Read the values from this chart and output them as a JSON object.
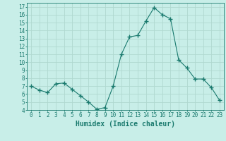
{
  "x": [
    0,
    1,
    2,
    3,
    4,
    5,
    6,
    7,
    8,
    9,
    10,
    11,
    12,
    13,
    14,
    15,
    16,
    17,
    18,
    19,
    20,
    21,
    22,
    23
  ],
  "y": [
    7.0,
    6.5,
    6.2,
    7.3,
    7.4,
    6.6,
    5.8,
    5.0,
    4.1,
    4.3,
    7.0,
    11.0,
    13.2,
    13.4,
    15.2,
    16.9,
    16.0,
    15.5,
    10.3,
    9.3,
    7.9,
    7.9,
    6.8,
    5.2
  ],
  "line_color": "#1a7a6e",
  "marker": "+",
  "marker_size": 4,
  "bg_color": "#c8eee8",
  "grid_color": "#b0d8d0",
  "xlabel": "Humidex (Indice chaleur)",
  "xlim": [
    -0.5,
    23.5
  ],
  "ylim": [
    4,
    17.5
  ],
  "yticks": [
    4,
    5,
    6,
    7,
    8,
    9,
    10,
    11,
    12,
    13,
    14,
    15,
    16,
    17
  ],
  "xticks": [
    0,
    1,
    2,
    3,
    4,
    5,
    6,
    7,
    8,
    9,
    10,
    11,
    12,
    13,
    14,
    15,
    16,
    17,
    18,
    19,
    20,
    21,
    22,
    23
  ],
  "tick_label_fontsize": 5.5,
  "xlabel_fontsize": 7,
  "tick_color": "#1a7a6e",
  "label_color": "#1a7a6e"
}
